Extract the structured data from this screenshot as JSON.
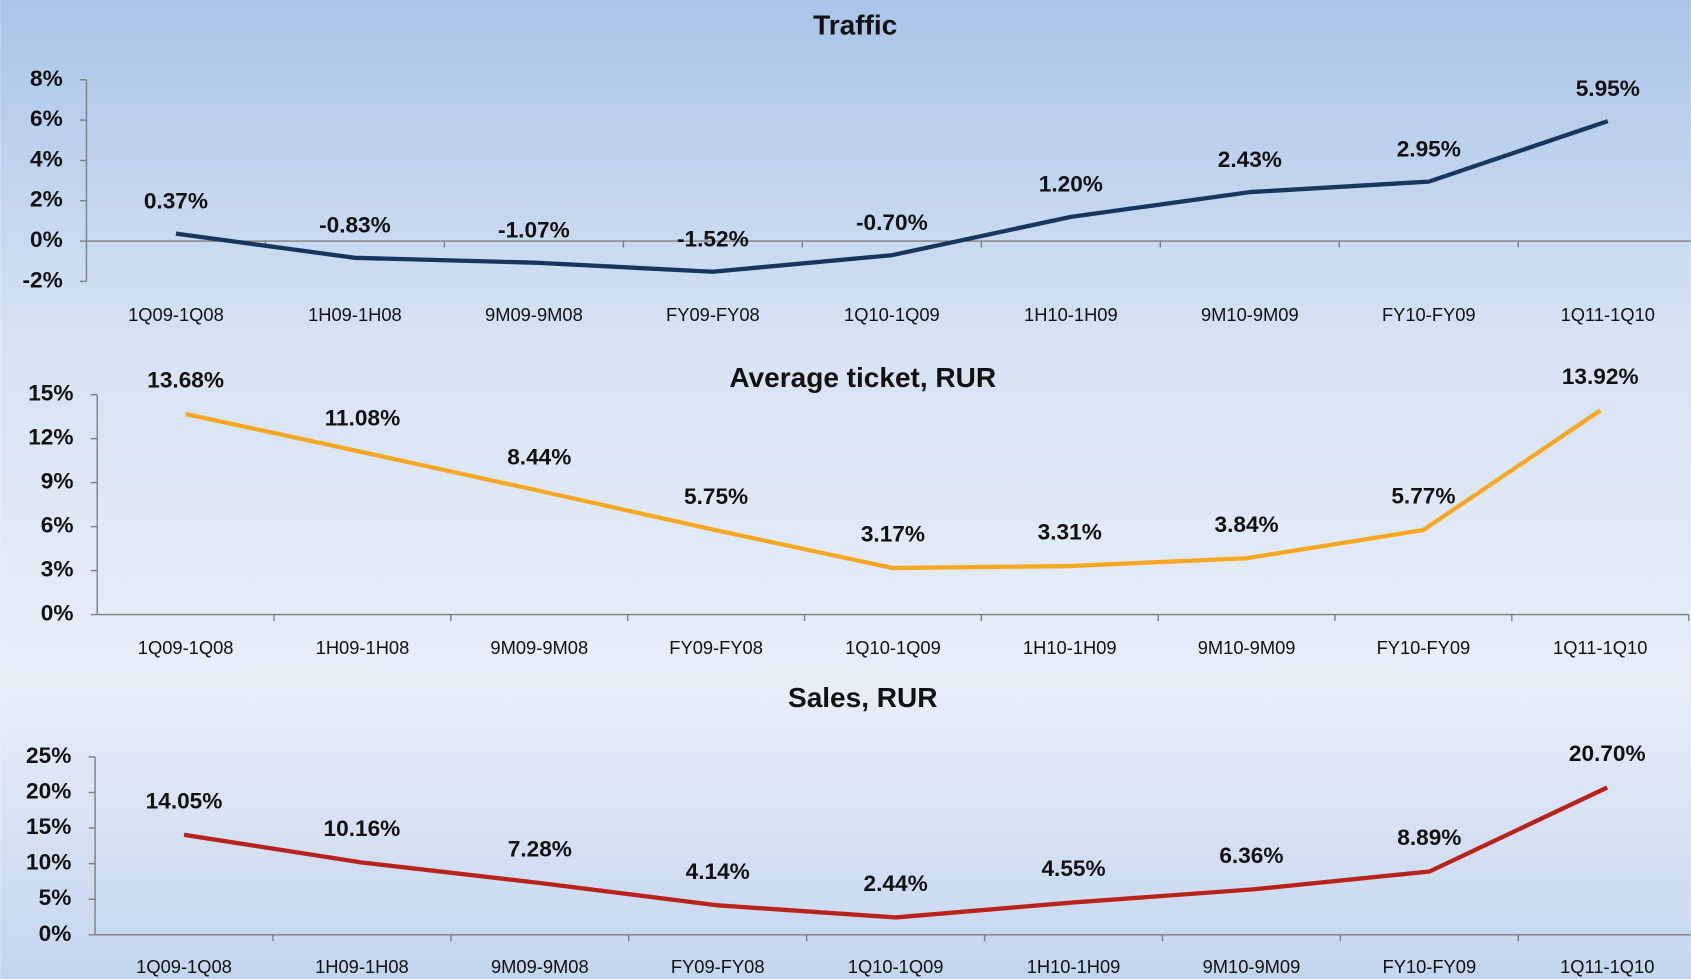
{
  "chart_data": [
    {
      "type": "line",
      "title": "Traffic",
      "categories": [
        "1Q09-1Q08",
        "1H09-1H08",
        "9M09-9M08",
        "FY09-FY08",
        "1Q10-1Q09",
        "1H10-1H09",
        "9M10-9M09",
        "FY10-FY09",
        "1Q11-1Q10"
      ],
      "values": [
        0.37,
        -0.83,
        -1.07,
        -1.52,
        -0.7,
        1.2,
        2.43,
        2.95,
        5.95
      ],
      "value_labels": [
        "0.37%",
        "-0.83%",
        "-1.07%",
        "-1.52%",
        "-0.70%",
        "1.20%",
        "2.43%",
        "2.95%",
        "5.95%"
      ],
      "color": "#17375e",
      "ylim": [
        -2,
        8
      ],
      "yticks": [
        {
          "value": -2,
          "label": "-2%"
        },
        {
          "value": 0,
          "label": "0%"
        },
        {
          "value": 2,
          "label": "2%"
        },
        {
          "value": 4,
          "label": "4%"
        },
        {
          "value": 6,
          "label": "6%"
        },
        {
          "value": 8,
          "label": "8%"
        }
      ],
      "grid": false
    },
    {
      "type": "line",
      "title": "Average ticket, RUR",
      "categories": [
        "1Q09-1Q08",
        "1H09-1H08",
        "9M09-9M08",
        "FY09-FY08",
        "1Q10-1Q09",
        "1H10-1H09",
        "9M10-9M09",
        "FY10-FY09",
        "1Q11-1Q10"
      ],
      "values": [
        13.68,
        11.08,
        8.44,
        5.75,
        3.17,
        3.31,
        3.84,
        5.77,
        13.92
      ],
      "value_labels": [
        "13.68%",
        "11.08%",
        "8.44%",
        "5.75%",
        "3.17%",
        "3.31%",
        "3.84%",
        "5.77%",
        "13.92%"
      ],
      "color": "#f7a823",
      "ylim": [
        0,
        15
      ],
      "yticks": [
        {
          "value": 0,
          "label": "0%"
        },
        {
          "value": 3,
          "label": "3%"
        },
        {
          "value": 6,
          "label": "6%"
        },
        {
          "value": 9,
          "label": "9%"
        },
        {
          "value": 12,
          "label": "12%"
        },
        {
          "value": 15,
          "label": "15%"
        }
      ],
      "grid": false
    },
    {
      "type": "line",
      "title": "Sales, RUR",
      "categories": [
        "1Q09-1Q08",
        "1H09-1H08",
        "9M09-9M08",
        "FY09-FY08",
        "1Q10-1Q09",
        "1H10-1H09",
        "9M10-9M09",
        "FY10-FY09",
        "1Q11-1Q10"
      ],
      "values": [
        14.05,
        10.16,
        7.28,
        4.14,
        2.44,
        4.55,
        6.36,
        8.89,
        20.7
      ],
      "value_labels": [
        "14.05%",
        "10.16%",
        "7.28%",
        "4.14%",
        "2.44%",
        "4.55%",
        "6.36%",
        "8.89%",
        "20.70%"
      ],
      "color": "#b8231b",
      "ylim": [
        0,
        25
      ],
      "yticks": [
        {
          "value": 0,
          "label": "0%"
        },
        {
          "value": 5,
          "label": "5%"
        },
        {
          "value": 10,
          "label": "10%"
        },
        {
          "value": 15,
          "label": "15%"
        },
        {
          "value": 20,
          "label": "20%"
        },
        {
          "value": 25,
          "label": "25%"
        }
      ],
      "grid": false
    }
  ]
}
